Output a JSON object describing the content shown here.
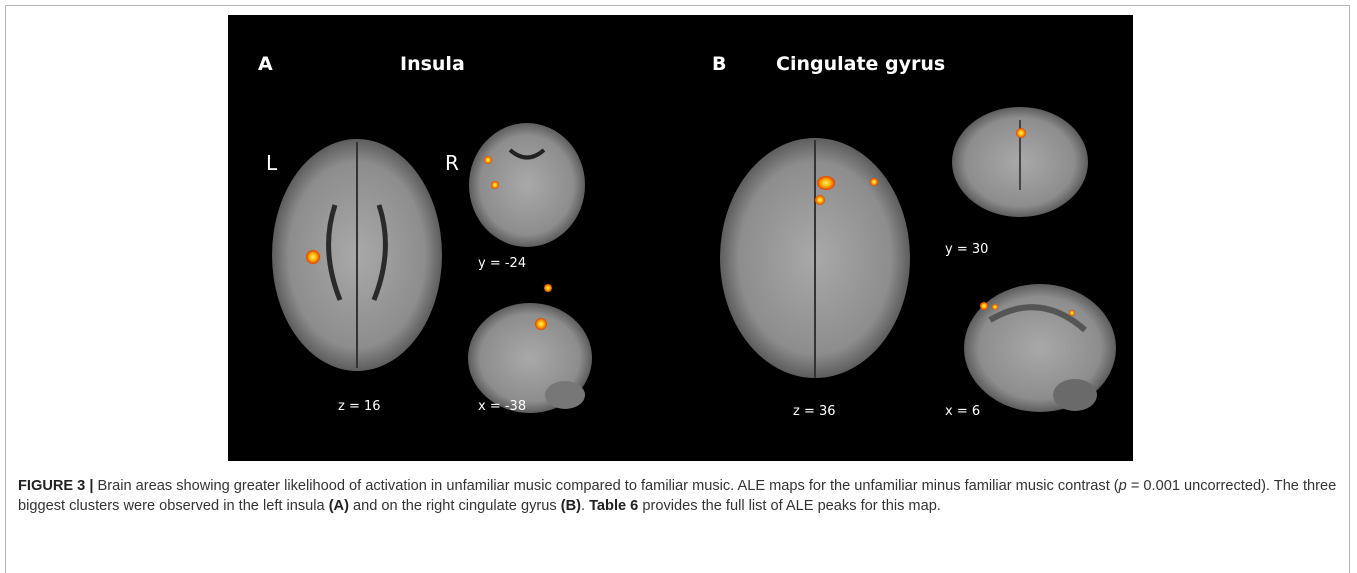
{
  "figure": {
    "panel_a": {
      "letter": "A",
      "title": "Insula",
      "left_label": "L",
      "right_label": "R",
      "coronal_label": "y = -24",
      "axial_label": "z = 16",
      "sagittal_label": "x = -38"
    },
    "panel_b": {
      "letter": "B",
      "title": "Cingulate gyrus",
      "coronal_label": "y = 30",
      "axial_label": "z = 36",
      "sagittal_label": "x = 6"
    }
  },
  "caption": {
    "figure_label": "FIGURE 3 |",
    "text_1": " Brain areas showing greater likelihood of activation in unfamiliar music compared to familiar music. ALE maps for the unfamiliar minus familiar music contrast (",
    "p_symbol": "p",
    "text_2": " = 0.001 uncorrected). The three biggest clusters were observed in the left insula ",
    "ref_a": "(A)",
    "text_3": " and on the right cingulate gyrus ",
    "ref_b": "(B)",
    "text_4": ". ",
    "table_ref": "Table 6",
    "text_5": " provides the full list of ALE peaks for this map."
  }
}
